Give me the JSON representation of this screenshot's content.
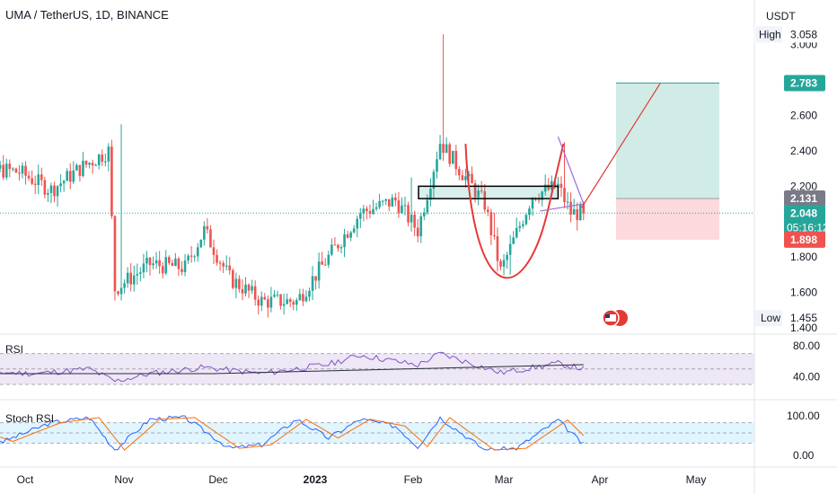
{
  "header": {
    "title": "UMA / TetherUS, 1D, BINANCE"
  },
  "price_axis": {
    "currency": "USDT",
    "ticks": [
      "3.000",
      "2.600",
      "2.400",
      "2.200",
      "1.800",
      "1.600",
      "1.400"
    ],
    "high_label": "High",
    "high_value": "3.058",
    "low_label": "Low",
    "low_value": "1.455",
    "target_badge": "2.783",
    "entry_badge": "2.131",
    "last_price_badge": "2.048",
    "countdown": "05:16:12",
    "stop_badge": "1.898"
  },
  "time_axis": {
    "labels": [
      "Oct",
      "Nov",
      "Dec",
      "2023",
      "Feb",
      "Mar",
      "Apr",
      "May"
    ]
  },
  "rsi_pane": {
    "label": "RSI",
    "ticks": [
      "80.00",
      "40.00"
    ]
  },
  "stoch_pane": {
    "label": "Stoch RSI",
    "ticks": [
      "100.00",
      "0.00"
    ]
  },
  "colors": {
    "up": "#26a69a",
    "down": "#ef5350",
    "target_zone": "#d1ece6",
    "stop_zone": "#fbd9dc",
    "rsi_line": "#7e57c2",
    "rsi_band": "#ede7f6",
    "stoch_k": "#2962ff",
    "stoch_d": "#ff6d00",
    "stoch_band": "#e1f5fe",
    "pattern": "#e53935",
    "triangle": "#9c6ade"
  },
  "chart_data": {
    "type": "candlestick",
    "symbol": "UMA / TetherUS",
    "interval": "1D",
    "exchange": "BINANCE",
    "y_range": [
      1.4,
      3.1
    ],
    "high": 3.058,
    "low": 1.455,
    "last": 2.048,
    "overlays": {
      "rectangle": [
        2.13,
        2.2
      ],
      "cup_bottom": 1.66,
      "long_position": {
        "entry": 2.131,
        "target": 2.783,
        "stop": 1.898
      }
    },
    "close_path": [
      [
        "Sep 20",
        2.42
      ],
      [
        "Oct 1",
        2.3
      ],
      [
        "Oct 10",
        2.28
      ],
      [
        "Oct 20",
        2.18
      ],
      [
        "Oct 29",
        2.3
      ],
      [
        "Nov 7",
        2.4
      ],
      [
        "Nov 9",
        1.62
      ],
      [
        "Nov 20",
        1.76
      ],
      [
        "Dec 1",
        1.74
      ],
      [
        "Dec 7",
        1.95
      ],
      [
        "Dec 15",
        1.68
      ],
      [
        "Dec 25",
        1.55
      ],
      [
        "Jan 5",
        1.55
      ],
      [
        "Jan 15",
        1.8
      ],
      [
        "Jan 25",
        2.05
      ],
      [
        "Feb 5",
        2.12
      ],
      [
        "Feb 12",
        1.95
      ],
      [
        "Feb 19",
        2.45
      ],
      [
        "Feb 27",
        2.25
      ],
      [
        "Mar 5",
        2.1
      ],
      [
        "Mar 10",
        1.72
      ],
      [
        "Mar 20",
        2.15
      ],
      [
        "Mar 28",
        2.2
      ],
      [
        "Apr 1",
        2.05
      ],
      [
        "Apr 5",
        2.048
      ]
    ],
    "rsi": [
      [
        "Sep 20",
        48
      ],
      [
        "Oct 1",
        46
      ],
      [
        "Oct 15",
        44
      ],
      [
        "Nov 1",
        50
      ],
      [
        "Nov 9",
        34
      ],
      [
        "Nov 20",
        44
      ],
      [
        "Dec 7",
        52
      ],
      [
        "Dec 25",
        44
      ],
      [
        "Jan 15",
        56
      ],
      [
        "Jan 25",
        68
      ],
      [
        "Feb 12",
        55
      ],
      [
        "Feb 19",
        70
      ],
      [
        "Mar 10",
        45
      ],
      [
        "Mar 28",
        57
      ],
      [
        "Apr 5",
        50
      ]
    ],
    "stoch_rsi_k": [
      [
        "Sep 20",
        70
      ],
      [
        "Oct 5",
        25
      ],
      [
        "Oct 20",
        80
      ],
      [
        "Nov 1",
        95
      ],
      [
        "Nov 9",
        0
      ],
      [
        "Nov 20",
        90
      ],
      [
        "Dec 1",
        95
      ],
      [
        "Dec 15",
        5
      ],
      [
        "Dec 25",
        15
      ],
      [
        "Jan 5",
        90
      ],
      [
        "Jan 15",
        35
      ],
      [
        "Jan 25",
        90
      ],
      [
        "Feb 5",
        70
      ],
      [
        "Feb 12",
        10
      ],
      [
        "Feb 19",
        95
      ],
      [
        "Mar 5",
        0
      ],
      [
        "Mar 15",
        5
      ],
      [
        "Mar 28",
        88
      ],
      [
        "Apr 5",
        15
      ]
    ]
  }
}
